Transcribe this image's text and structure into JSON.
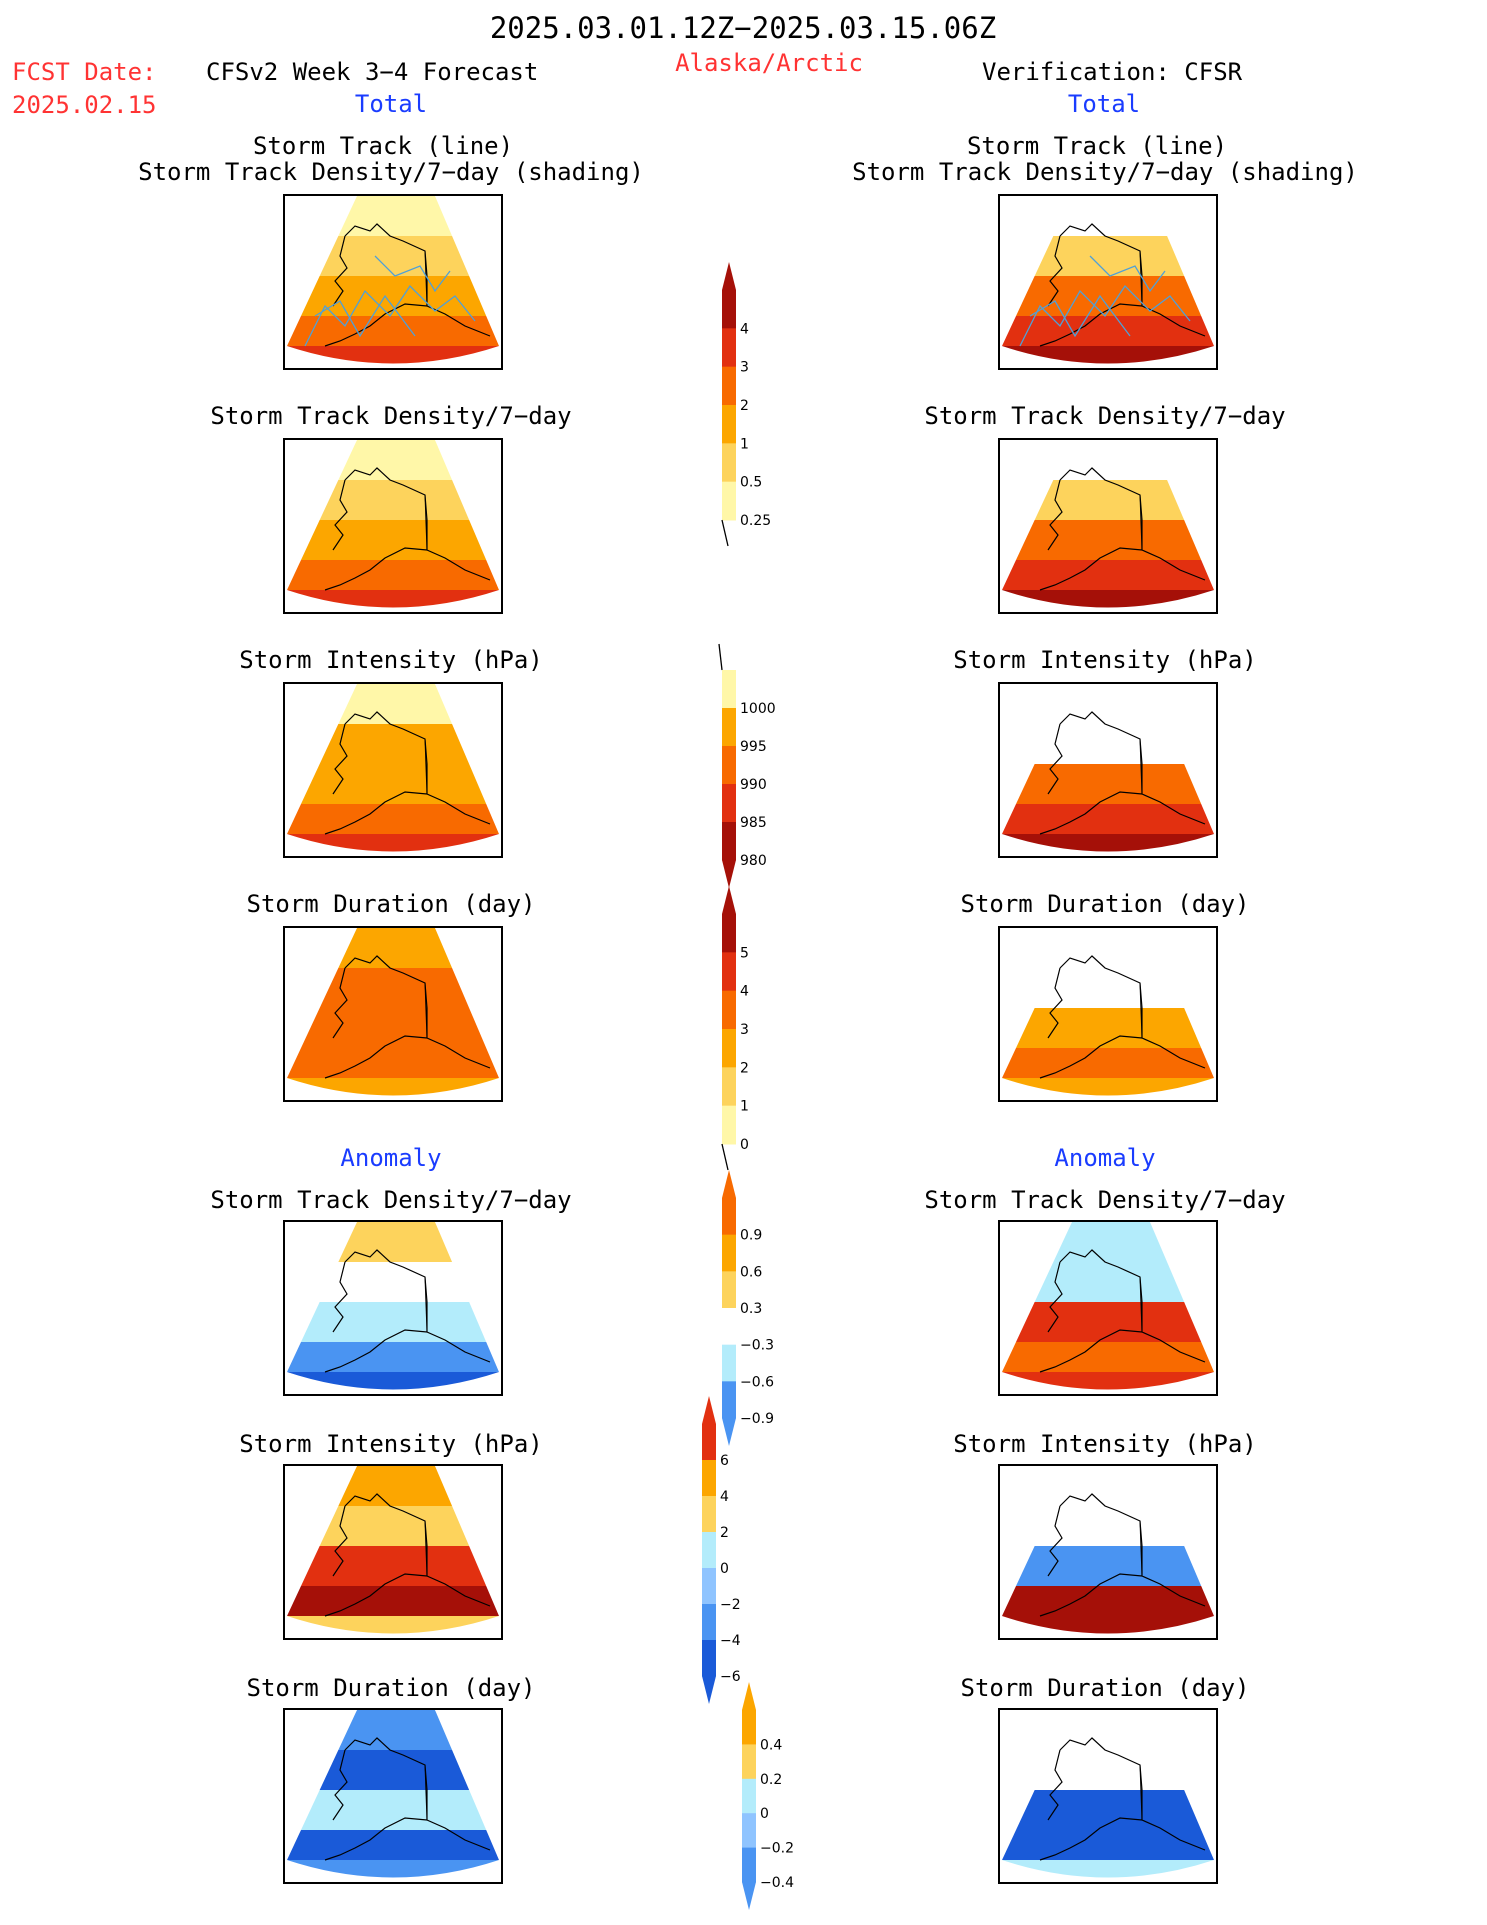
{
  "header": {
    "period": "2025.03.01.12Z−2025.03.15.06Z",
    "fcst_date_label": "FCST Date:",
    "fcst_date_value": "2025.02.15",
    "model_title": "CFSv2 Week 3−4 Forecast",
    "region": "Alaska/Arctic",
    "verification": "Verification: CFSR",
    "left_section_total": "Total",
    "right_section_total": "Total",
    "left_section_anomaly": "Anomaly",
    "right_section_anomaly": "Anomaly"
  },
  "colors": {
    "red_text": "#ff3333",
    "blue_text": "#1a3cff",
    "light_yellow": "#fff7a8",
    "yellow": "#fdd35c",
    "orange": "#fca600",
    "dark_orange": "#f86a00",
    "red": "#e23010",
    "dark_red": "#a51008",
    "light_blue": "#b3ecfb",
    "mid_blue": "#8fc4ff",
    "blue": "#4a94f2",
    "dark_blue": "#1a5ad8",
    "track_line": "#4fa0d8"
  },
  "panels": {
    "left_track_title1": "Storm Track (line)",
    "left_track_title2": "Storm Track Density/7−day (shading)",
    "right_track_title1": "Storm Track (line)",
    "right_track_title2": "Storm Track Density/7−day (shading)",
    "left_density": "Storm Track Density/7−day",
    "right_density": "Storm Track Density/7−day",
    "left_intensity": "Storm Intensity (hPa)",
    "right_intensity": "Storm Intensity (hPa)",
    "left_duration": "Storm Duration (day)",
    "right_duration": "Storm Duration (day)",
    "left_anom_density": "Storm Track Density/7−day",
    "right_anom_density": "Storm Track Density/7−day",
    "left_anom_intensity": "Storm Intensity (hPa)",
    "right_anom_intensity": "Storm Intensity (hPa)",
    "left_anom_duration": "Storm Duration (day)",
    "right_anom_duration": "Storm Duration (day)"
  },
  "colorbars": {
    "density_total": {
      "labels": [
        "4",
        "3",
        "2",
        "1",
        "0.5",
        "0.25"
      ],
      "colors": [
        "#a51008",
        "#e23010",
        "#f86a00",
        "#fca600",
        "#fdd35c",
        "#fff7a8"
      ]
    },
    "intensity_total": {
      "labels": [
        "1000",
        "995",
        "990",
        "985",
        "980"
      ],
      "colors": [
        "#fff7a8",
        "#fca600",
        "#f86a00",
        "#e23010",
        "#a51008"
      ]
    },
    "duration_total": {
      "labels": [
        "5",
        "4",
        "3",
        "2",
        "1",
        "0"
      ],
      "colors": [
        "#a51008",
        "#e23010",
        "#f86a00",
        "#fca600",
        "#fdd35c",
        "#fff7a8"
      ]
    },
    "density_anom": {
      "labels": [
        "0.9",
        "0.6",
        "0.3",
        "−0.3",
        "−0.6",
        "−0.9"
      ],
      "colors": [
        "#f86a00",
        "#fca600",
        "#fdd35c",
        "#ffffff",
        "#b3ecfb",
        "#4a94f2"
      ]
    },
    "intensity_anom": {
      "labels": [
        "6",
        "4",
        "2",
        "0",
        "−2",
        "−4",
        "−6"
      ],
      "colors": [
        "#e23010",
        "#fca600",
        "#fdd35c",
        "#b3ecfb",
        "#8fc4ff",
        "#4a94f2",
        "#1a5ad8"
      ]
    },
    "duration_anom": {
      "labels": [
        "0.4",
        "0.2",
        "0",
        "−0.2",
        "−0.4"
      ],
      "colors": [
        "#fca600",
        "#fdd35c",
        "#b3ecfb",
        "#8fc4ff",
        "#4a94f2"
      ]
    }
  }
}
